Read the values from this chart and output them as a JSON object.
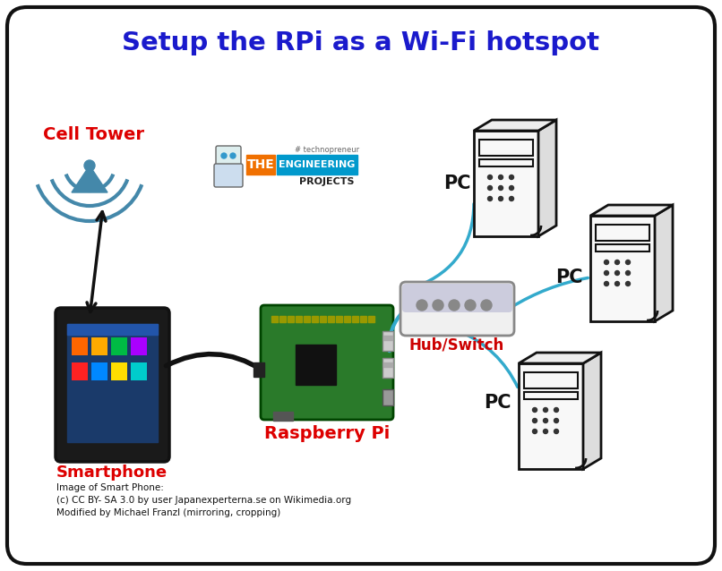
{
  "title": "Setup the RPi as a Wi-Fi hotspot",
  "title_color": "#1a1acc",
  "title_fontsize": 21,
  "bg_color": "#ffffff",
  "border_color": "#111111",
  "cell_tower_label": "Cell Tower",
  "cell_tower_color": "#dd0000",
  "cell_tower_icon_color": "#4488aa",
  "smartphone_label": "Smartphone",
  "smartphone_color": "#dd0000",
  "rpi_label": "Raspberry Pi",
  "rpi_color": "#dd0000",
  "hub_label": "Hub/Switch",
  "hub_color": "#cc0000",
  "pc_label": "PC",
  "pc_edge_color": "#111111",
  "pc_face_color": "#f0f0f0",
  "cable_color": "#33aacc",
  "arrow_color": "#111111",
  "attribution1": "Image of Smart Phone:",
  "attribution2": "(c) CC BY- SA 3.0 by user Japanexperterna.se on Wikimedia.org",
  "attribution3": "Modified by Michael Franzl (mirroring, cropping)",
  "logo_orange": "#f07000",
  "logo_blue": "#0099cc",
  "logo_dark": "#222222"
}
